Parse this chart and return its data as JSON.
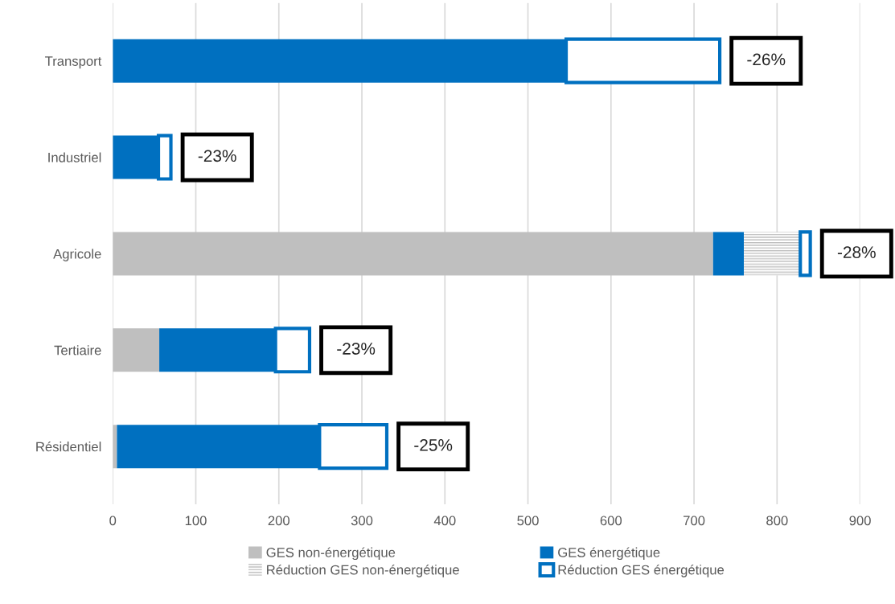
{
  "chart_data": {
    "type": "bar",
    "orientation": "horizontal",
    "stacked": true,
    "categories": [
      "Transport",
      "Industriel",
      "Agricole",
      "Tertiaire",
      "Résidentiel"
    ],
    "series": [
      {
        "name": "GES non-énergétique",
        "color": "#bfbfbf",
        "values": [
          0,
          0,
          723,
          56,
          5
        ]
      },
      {
        "name": "GES énergétique",
        "color": "#0070c0",
        "values": [
          546,
          55,
          37,
          140,
          244
        ]
      },
      {
        "name": "Réduction GES non-énergétique",
        "color": "#bfbfbf",
        "values": [
          0,
          0,
          68,
          0,
          0
        ]
      },
      {
        "name": "Réduction GES énergétique",
        "color": "#0070c0",
        "values": [
          185,
          15,
          12,
          41,
          81
        ]
      }
    ],
    "annotations": [
      {
        "text": "-26%",
        "x": 731,
        "y": "Transport"
      },
      {
        "text": "-23%",
        "x": 70,
        "y": "Industriel"
      },
      {
        "text": "-28%",
        "x": 840,
        "y": "Agricole"
      },
      {
        "text": "-23%",
        "x": 237,
        "y": "Tertiaire"
      },
      {
        "text": "-25%",
        "x": 330,
        "y": "Résidentiel"
      }
    ],
    "xlim": [
      0,
      900
    ],
    "xticks": [
      0,
      100,
      200,
      300,
      400,
      500,
      600,
      700,
      800,
      900
    ],
    "grid": "x",
    "legend": "bottom"
  }
}
